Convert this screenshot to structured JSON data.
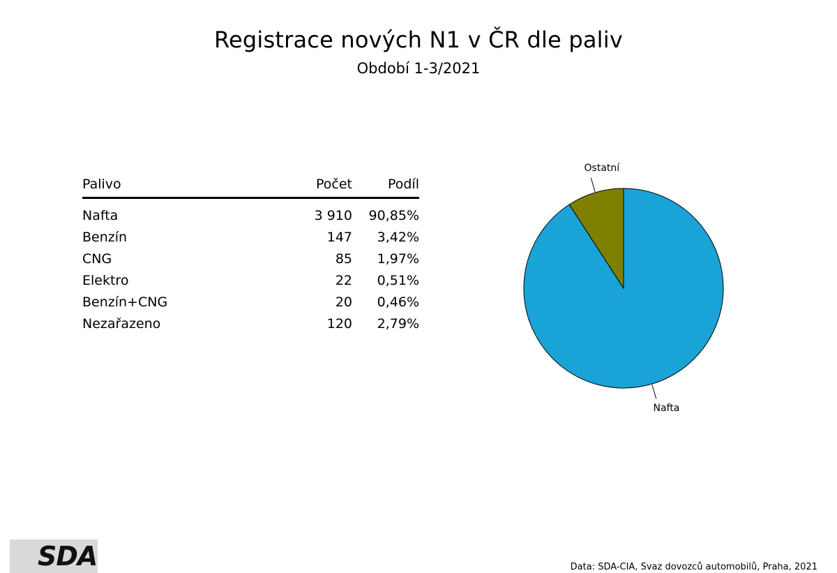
{
  "header": {
    "title": "Registrace nových N1 v ČR dle paliv",
    "subtitle": "Období 1-3/2021"
  },
  "table": {
    "columns": [
      "Palivo",
      "Počet",
      "Podíl"
    ],
    "rows": [
      {
        "name": "Nafta",
        "count": "3 910",
        "share": "90,85%"
      },
      {
        "name": "Benzín",
        "count": "147",
        "share": "3,42%"
      },
      {
        "name": "CNG",
        "count": "85",
        "share": "1,97%"
      },
      {
        "name": "Elektro",
        "count": "22",
        "share": "0,51%"
      },
      {
        "name": "Benzín+CNG",
        "count": "20",
        "share": "0,46%"
      },
      {
        "name": "Nezařazeno",
        "count": "120",
        "share": "2,79%"
      }
    ]
  },
  "chart_data": {
    "type": "pie",
    "categories": [
      "Nafta",
      "Ostatní"
    ],
    "values": [
      90.85,
      9.15
    ],
    "colors": [
      "#1aa3d6",
      "#808000"
    ],
    "start": "12 o'clock, clockwise",
    "legend": "none"
  },
  "footer": {
    "logo_text": "SDA",
    "source": "Data: SDA-CIA, Svaz dovozců automobilů, Praha, 2021"
  }
}
